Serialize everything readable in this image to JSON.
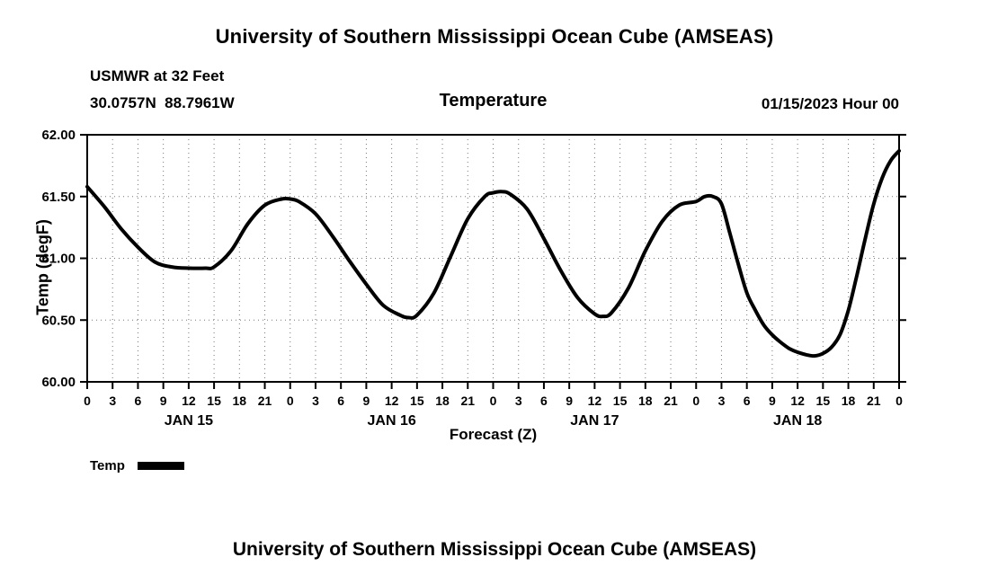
{
  "header": {
    "title": "University of Southern Mississippi Ocean Cube (AMSEAS)"
  },
  "subheader": {
    "station": "USMWR at 32 Feet",
    "coordinates": "30.0757N  88.7961W",
    "plot_title": "Temperature",
    "init_time": "01/15/2023 Hour 00"
  },
  "legend": {
    "label": "Temp"
  },
  "footer": {
    "title": "University of Southern Mississippi Ocean Cube (AMSEAS)"
  },
  "chart_data": {
    "type": "line",
    "title": "Temperature",
    "xlabel": "Forecast (Z)",
    "ylabel": "Temp (degF)",
    "xlim": [
      0,
      96
    ],
    "ylim": [
      60.0,
      62.0
    ],
    "grid": "dotted",
    "line_color": "#000000",
    "line_width": 4,
    "legend_position": "bottom-left",
    "yticks": [
      {
        "value": 62.0,
        "label": "62.00"
      },
      {
        "value": 61.5,
        "label": "61.50"
      },
      {
        "value": 61.0,
        "label": "61.00"
      },
      {
        "value": 60.5,
        "label": "60.50"
      },
      {
        "value": 60.0,
        "label": "60.00"
      }
    ],
    "xticks": [
      {
        "hour": 0,
        "label": "0"
      },
      {
        "hour": 3,
        "label": "3"
      },
      {
        "hour": 6,
        "label": "6"
      },
      {
        "hour": 9,
        "label": "9"
      },
      {
        "hour": 12,
        "label": "12"
      },
      {
        "hour": 15,
        "label": "15"
      },
      {
        "hour": 18,
        "label": "18"
      },
      {
        "hour": 21,
        "label": "21"
      },
      {
        "hour": 24,
        "label": "0"
      },
      {
        "hour": 27,
        "label": "3"
      },
      {
        "hour": 30,
        "label": "6"
      },
      {
        "hour": 33,
        "label": "9"
      },
      {
        "hour": 36,
        "label": "12"
      },
      {
        "hour": 39,
        "label": "15"
      },
      {
        "hour": 42,
        "label": "18"
      },
      {
        "hour": 45,
        "label": "21"
      },
      {
        "hour": 48,
        "label": "0"
      },
      {
        "hour": 51,
        "label": "3"
      },
      {
        "hour": 54,
        "label": "6"
      },
      {
        "hour": 57,
        "label": "9"
      },
      {
        "hour": 60,
        "label": "12"
      },
      {
        "hour": 63,
        "label": "15"
      },
      {
        "hour": 66,
        "label": "18"
      },
      {
        "hour": 69,
        "label": "21"
      },
      {
        "hour": 72,
        "label": "0"
      },
      {
        "hour": 75,
        "label": "3"
      },
      {
        "hour": 78,
        "label": "6"
      },
      {
        "hour": 81,
        "label": "9"
      },
      {
        "hour": 84,
        "label": "12"
      },
      {
        "hour": 87,
        "label": "15"
      },
      {
        "hour": 90,
        "label": "18"
      },
      {
        "hour": 93,
        "label": "21"
      },
      {
        "hour": 96,
        "label": "0"
      }
    ],
    "day_labels": [
      {
        "label": "JAN 15",
        "hour": 12
      },
      {
        "label": "JAN 16",
        "hour": 36
      },
      {
        "label": "JAN 17",
        "hour": 60
      },
      {
        "label": "JAN 18",
        "hour": 84
      }
    ],
    "series": [
      {
        "name": "Temp",
        "points": [
          [
            0,
            61.58
          ],
          [
            2,
            61.42
          ],
          [
            4,
            61.24
          ],
          [
            6,
            61.09
          ],
          [
            8,
            60.97
          ],
          [
            10,
            60.93
          ],
          [
            12,
            60.92
          ],
          [
            14,
            60.92
          ],
          [
            15,
            60.93
          ],
          [
            17,
            61.06
          ],
          [
            19,
            61.28
          ],
          [
            21,
            61.43
          ],
          [
            23,
            61.48
          ],
          [
            24,
            61.48
          ],
          [
            25,
            61.46
          ],
          [
            27,
            61.36
          ],
          [
            29,
            61.18
          ],
          [
            31,
            60.98
          ],
          [
            33,
            60.79
          ],
          [
            35,
            60.62
          ],
          [
            37,
            60.54
          ],
          [
            38,
            60.52
          ],
          [
            39,
            60.54
          ],
          [
            41,
            60.72
          ],
          [
            43,
            61.02
          ],
          [
            45,
            61.32
          ],
          [
            47,
            61.5
          ],
          [
            48,
            61.53
          ],
          [
            49,
            61.54
          ],
          [
            50,
            61.52
          ],
          [
            52,
            61.4
          ],
          [
            54,
            61.16
          ],
          [
            56,
            60.9
          ],
          [
            58,
            60.68
          ],
          [
            60,
            60.55
          ],
          [
            61,
            60.53
          ],
          [
            62,
            60.56
          ],
          [
            64,
            60.76
          ],
          [
            66,
            61.06
          ],
          [
            68,
            61.3
          ],
          [
            70,
            61.43
          ],
          [
            72,
            61.46
          ],
          [
            73,
            61.5
          ],
          [
            74,
            61.5
          ],
          [
            75,
            61.44
          ],
          [
            76,
            61.2
          ],
          [
            77,
            60.95
          ],
          [
            78,
            60.72
          ],
          [
            79,
            60.58
          ],
          [
            80,
            60.46
          ],
          [
            81,
            60.38
          ],
          [
            82,
            60.32
          ],
          [
            83,
            60.27
          ],
          [
            84,
            60.24
          ],
          [
            85,
            60.22
          ],
          [
            86,
            60.21
          ],
          [
            87,
            60.23
          ],
          [
            88,
            60.28
          ],
          [
            89,
            60.38
          ],
          [
            90,
            60.58
          ],
          [
            91,
            60.86
          ],
          [
            92,
            61.16
          ],
          [
            93,
            61.44
          ],
          [
            94,
            61.65
          ],
          [
            95,
            61.79
          ],
          [
            96,
            61.87
          ]
        ]
      }
    ]
  }
}
